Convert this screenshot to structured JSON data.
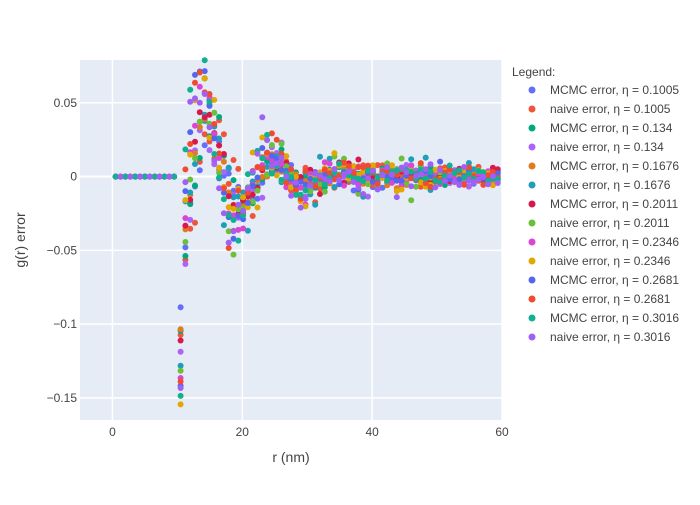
{
  "chart_data": {
    "type": "scatter",
    "xlabel": "r (nm)",
    "ylabel": "g(r) error",
    "xlim": [
      -5,
      60
    ],
    "ylim": [
      -0.165,
      0.079
    ],
    "x_ticks": [
      0,
      20,
      40,
      60
    ],
    "x_tick_labels": [
      "0",
      "20",
      "40",
      "60"
    ],
    "y_ticks": [
      0.05,
      0,
      -0.05,
      -0.1,
      -0.15
    ],
    "y_tick_labels": [
      "0.05",
      "0",
      "−0.05",
      "−0.1",
      "−0.15"
    ],
    "grid": true,
    "legend": {
      "title": "Legend:",
      "placement": "right"
    },
    "series": [
      {
        "name": "MCMC error, η = 0.1005",
        "color": "#636efa",
        "eta": 0.1005,
        "kind": "mcmc"
      },
      {
        "name": "naive error, η = 0.1005",
        "color": "#EF553B",
        "eta": 0.1005,
        "kind": "naive"
      },
      {
        "name": "MCMC error, η = 0.134",
        "color": "#00cc96",
        "eta": 0.134,
        "kind": "mcmc"
      },
      {
        "name": "naive error, η = 0.134",
        "color": "#ab63fa",
        "eta": 0.134,
        "kind": "naive"
      },
      {
        "name": "MCMC error, η = 0.1676",
        "color": "#FFA15A",
        "eta": 0.1676,
        "kind": "mcmc"
      },
      {
        "name": "naive error, η = 0.1676",
        "color": "#19d3f3",
        "eta": 0.1676,
        "kind": "naive"
      },
      {
        "name": "MCMC error, η = 0.2011",
        "color": "#FF6692",
        "eta": 0.2011,
        "kind": "mcmc"
      },
      {
        "name": "naive error, η = 0.2011",
        "color": "#B6E880",
        "eta": 0.2011,
        "kind": "naive"
      },
      {
        "name": "MCMC error, η = 0.2346",
        "color": "#FF97FF",
        "eta": 0.2346,
        "kind": "mcmc"
      },
      {
        "name": "naive error, η = 0.2346",
        "color": "#FECB52",
        "eta": 0.2346,
        "kind": "naive"
      },
      {
        "name": "MCMC error, η = 0.2681",
        "color": "#636efa",
        "eta": 0.2681,
        "kind": "mcmc"
      },
      {
        "name": "naive error, η = 0.2681",
        "color": "#EF553B",
        "eta": 0.2681,
        "kind": "naive"
      },
      {
        "name": "MCMC error, η = 0.3016",
        "color": "#00cc96",
        "eta": 0.3016,
        "kind": "mcmc"
      },
      {
        "name": "naive error, η = 0.3016",
        "color": "#ab63fa",
        "eta": 0.3016,
        "kind": "naive"
      }
    ]
  },
  "palette_actual": [
    "#636efa",
    "#EF553B",
    "#00a87d",
    "#ab63fa",
    "#e07b20",
    "#1f9eb8",
    "#d6194a",
    "#6cbf3a",
    "#d946d6",
    "#e0a800",
    "#5566ee",
    "#f04b30",
    "#10b090",
    "#a060f5"
  ]
}
